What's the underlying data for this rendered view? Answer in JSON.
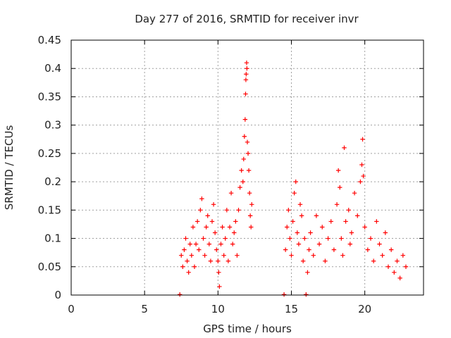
{
  "chart_data": {
    "type": "scatter",
    "title": "Day 277 of 2016, SRMTID for receiver invr",
    "xlabel": "GPS time / hours",
    "ylabel": "SRMTID / TECUs",
    "xlim": [
      0,
      24
    ],
    "ylim": [
      0,
      0.45
    ],
    "x_ticks": [
      "0",
      "5",
      "10",
      "15",
      "20"
    ],
    "y_ticks": [
      "0",
      "0.05",
      "0.1",
      "0.15",
      "0.2",
      "0.25",
      "0.3",
      "0.35",
      "0.4",
      "0.45"
    ],
    "grid": true,
    "marker": "+",
    "color": "#ff0000",
    "series": [
      {
        "points": [
          [
            7.4,
            0.001
          ],
          [
            14.5,
            0.001
          ],
          [
            16.0,
            0.001
          ],
          [
            7.5,
            0.07
          ],
          [
            7.6,
            0.05
          ],
          [
            7.7,
            0.08
          ],
          [
            7.8,
            0.1
          ],
          [
            7.9,
            0.06
          ],
          [
            8.0,
            0.04
          ],
          [
            8.1,
            0.09
          ],
          [
            8.2,
            0.07
          ],
          [
            8.3,
            0.12
          ],
          [
            8.4,
            0.05
          ],
          [
            8.5,
            0.09
          ],
          [
            8.6,
            0.13
          ],
          [
            8.7,
            0.08
          ],
          [
            8.8,
            0.15
          ],
          [
            8.9,
            0.17
          ],
          [
            9.0,
            0.1
          ],
          [
            9.1,
            0.07
          ],
          [
            9.2,
            0.12
          ],
          [
            9.3,
            0.14
          ],
          [
            9.4,
            0.09
          ],
          [
            9.5,
            0.06
          ],
          [
            9.6,
            0.13
          ],
          [
            9.7,
            0.16
          ],
          [
            9.8,
            0.11
          ],
          [
            9.9,
            0.08
          ],
          [
            10.0,
            0.06
          ],
          [
            10.05,
            0.04
          ],
          [
            10.1,
            0.015
          ],
          [
            10.2,
            0.09
          ],
          [
            10.3,
            0.12
          ],
          [
            10.4,
            0.07
          ],
          [
            10.5,
            0.1
          ],
          [
            10.6,
            0.15
          ],
          [
            10.7,
            0.06
          ],
          [
            10.8,
            0.12
          ],
          [
            10.9,
            0.18
          ],
          [
            11.0,
            0.09
          ],
          [
            11.1,
            0.11
          ],
          [
            11.2,
            0.13
          ],
          [
            11.3,
            0.07
          ],
          [
            11.4,
            0.15
          ],
          [
            11.5,
            0.19
          ],
          [
            11.6,
            0.22
          ],
          [
            11.7,
            0.2
          ],
          [
            11.75,
            0.24
          ],
          [
            11.8,
            0.28
          ],
          [
            11.85,
            0.31
          ],
          [
            11.88,
            0.355
          ],
          [
            11.9,
            0.38
          ],
          [
            11.92,
            0.39
          ],
          [
            11.95,
            0.41
          ],
          [
            11.97,
            0.4
          ],
          [
            12.0,
            0.27
          ],
          [
            12.05,
            0.25
          ],
          [
            12.1,
            0.22
          ],
          [
            12.15,
            0.18
          ],
          [
            12.2,
            0.14
          ],
          [
            12.25,
            0.12
          ],
          [
            12.3,
            0.16
          ],
          [
            14.6,
            0.08
          ],
          [
            14.7,
            0.12
          ],
          [
            14.8,
            0.15
          ],
          [
            14.9,
            0.1
          ],
          [
            15.0,
            0.07
          ],
          [
            15.1,
            0.13
          ],
          [
            15.2,
            0.18
          ],
          [
            15.3,
            0.2
          ],
          [
            15.4,
            0.11
          ],
          [
            15.5,
            0.09
          ],
          [
            15.6,
            0.16
          ],
          [
            15.7,
            0.14
          ],
          [
            15.8,
            0.06
          ],
          [
            15.9,
            0.1
          ],
          [
            16.1,
            0.04
          ],
          [
            16.2,
            0.08
          ],
          [
            16.3,
            0.11
          ],
          [
            16.5,
            0.07
          ],
          [
            16.7,
            0.14
          ],
          [
            16.9,
            0.09
          ],
          [
            17.1,
            0.12
          ],
          [
            17.3,
            0.06
          ],
          [
            17.5,
            0.1
          ],
          [
            17.7,
            0.13
          ],
          [
            17.9,
            0.08
          ],
          [
            18.1,
            0.16
          ],
          [
            18.2,
            0.22
          ],
          [
            18.3,
            0.19
          ],
          [
            18.4,
            0.1
          ],
          [
            18.5,
            0.07
          ],
          [
            18.6,
            0.26
          ],
          [
            18.7,
            0.13
          ],
          [
            18.9,
            0.15
          ],
          [
            19.0,
            0.09
          ],
          [
            19.1,
            0.11
          ],
          [
            19.3,
            0.18
          ],
          [
            19.5,
            0.14
          ],
          [
            19.7,
            0.2
          ],
          [
            19.8,
            0.23
          ],
          [
            19.85,
            0.275
          ],
          [
            19.9,
            0.21
          ],
          [
            20.0,
            0.12
          ],
          [
            20.2,
            0.08
          ],
          [
            20.4,
            0.1
          ],
          [
            20.6,
            0.06
          ],
          [
            20.8,
            0.13
          ],
          [
            21.0,
            0.09
          ],
          [
            21.2,
            0.07
          ],
          [
            21.4,
            0.11
          ],
          [
            21.6,
            0.05
          ],
          [
            21.8,
            0.08
          ],
          [
            22.0,
            0.04
          ],
          [
            22.2,
            0.06
          ],
          [
            22.4,
            0.03
          ],
          [
            22.6,
            0.07
          ],
          [
            22.8,
            0.05
          ]
        ]
      }
    ]
  }
}
